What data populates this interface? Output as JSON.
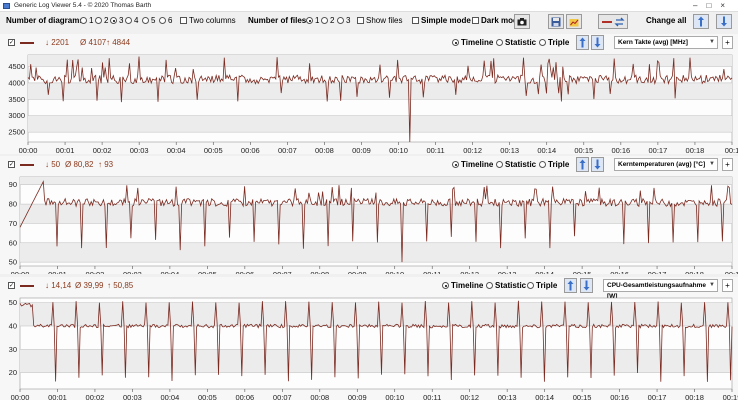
{
  "window": {
    "title": "Generic Log Viewer 5.4 - © 2020 Thomas Barth"
  },
  "toolbar": {
    "diagrams_label": "Number of diagrams",
    "diagram_options": [
      "1",
      "2",
      "3",
      "4",
      "5",
      "6"
    ],
    "diagram_selected": "3",
    "two_columns": "Two columns",
    "files_label": "Number of files",
    "file_options": [
      "1",
      "2",
      "3"
    ],
    "file_selected": "1",
    "show_files": "Show files",
    "simple_mode": "Simple mode",
    "dark_mode": "Dark mod",
    "change_all": "Change all"
  },
  "colors": {
    "series": "#7b2a20",
    "stat_text": "#8b3a1e",
    "grid": "#bdbdbd"
  },
  "panels": [
    {
      "min": "↓ 2201",
      "avg": "Ø 4107",
      "max": "↑ 4844",
      "modes": [
        "Timeline",
        "Statistic",
        "Triple"
      ],
      "mode_selected": "Timeline",
      "sensor": "Kern Takte (avg) [MHz]",
      "chart_data": {
        "type": "line",
        "xlabel": "Time",
        "x_ticks": [
          "00:00",
          "00:01",
          "00:02",
          "00:03",
          "00:04",
          "00:05",
          "00:06",
          "00:07",
          "00:08",
          "00:09",
          "00:10",
          "00:11",
          "00:12",
          "00:13",
          "00:14",
          "00:15",
          "00:16",
          "00:17",
          "00:18",
          "00:1"
        ],
        "y_ticks": [
          2500,
          3000,
          3500,
          4000,
          4500
        ],
        "ylim": [
          2200,
          4850
        ],
        "series": [
          {
            "base": 4107,
            "min": 2201,
            "max": 4844
          }
        ]
      }
    },
    {
      "min": "↓ 50",
      "avg": "Ø 80,82",
      "max": "↑ 93",
      "modes": [
        "Timeline",
        "Statistic",
        "Triple"
      ],
      "mode_selected": "Timeline",
      "sensor": "Kerntemperaturen (avg) [°C]",
      "chart_data": {
        "type": "line",
        "xlabel": "Time",
        "x_ticks": [
          "00:00",
          "00:01",
          "00:02",
          "00:03",
          "00:04",
          "00:05",
          "00:06",
          "00:07",
          "00:08",
          "00:09",
          "00:10",
          "00:11",
          "00:12",
          "00:13",
          "00:14",
          "00:15",
          "00:16",
          "00:17",
          "00:18",
          "00:1"
        ],
        "y_ticks": [
          50,
          60,
          70,
          80,
          90
        ],
        "ylim": [
          48,
          94
        ],
        "series": [
          {
            "base": 80.82,
            "min": 50,
            "max": 93
          }
        ]
      }
    },
    {
      "min": "↓ 14,14",
      "avg": "Ø 39,99",
      "max": "↑ 50,85",
      "modes": [
        "Timeline",
        "Statistic",
        "Triple"
      ],
      "mode_selected": "Timeline",
      "sensor": "CPU-Gesamtleistungsaufnahme [W]",
      "chart_data": {
        "type": "line",
        "xlabel": "Time",
        "x_ticks": [
          "00:00",
          "00:01",
          "00:02",
          "00:03",
          "00:04",
          "00:05",
          "00:06",
          "00:07",
          "00:08",
          "00:09",
          "00:10",
          "00:11",
          "00:12",
          "00:13",
          "00:14",
          "00:15",
          "00:16",
          "00:17",
          "00:18",
          "00:19"
        ],
        "y_ticks": [
          20,
          30,
          40,
          50
        ],
        "ylim": [
          13,
          52
        ],
        "series": [
          {
            "base": 39.99,
            "min": 14.14,
            "max": 50.85
          }
        ]
      }
    }
  ]
}
